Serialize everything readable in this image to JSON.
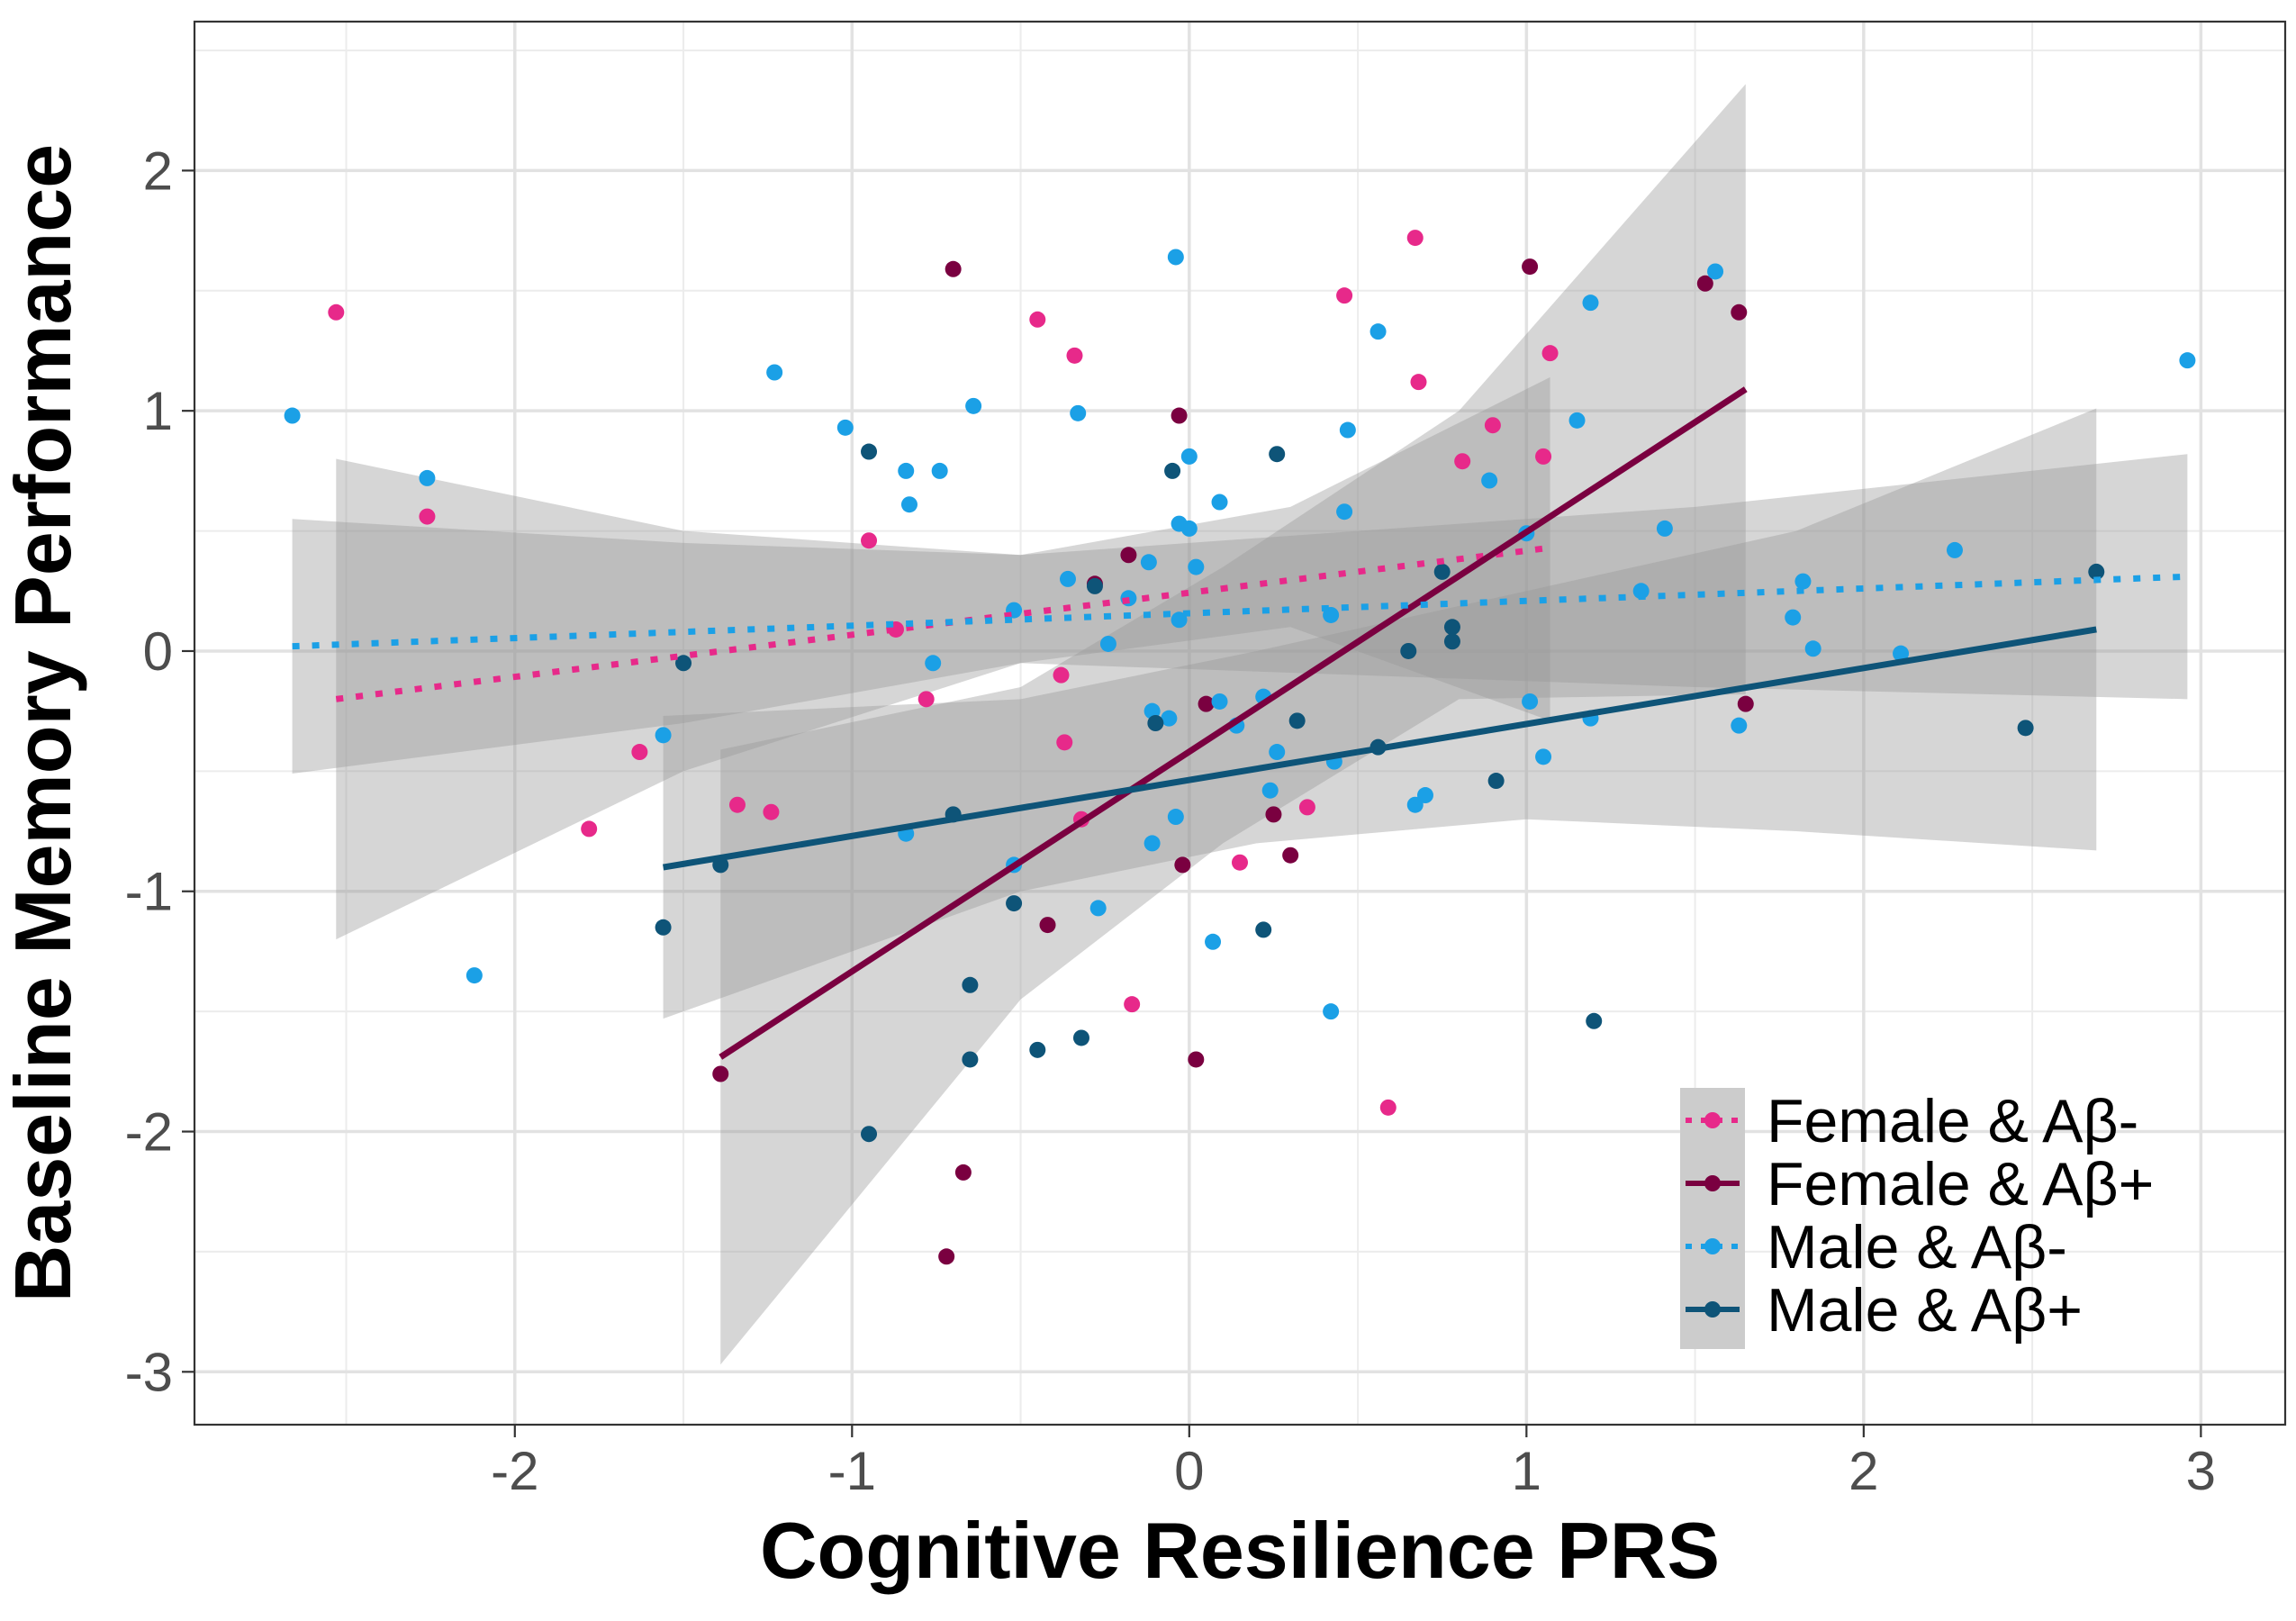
{
  "chart_data": {
    "type": "scatter",
    "xlabel": "Cognitive Resilience PRS",
    "ylabel": "Baseline Memory Performance",
    "xlim": [
      -2.95,
      3.25
    ],
    "ylim": [
      -3.22,
      2.62
    ],
    "x_ticks": [
      -2,
      -1,
      0,
      1,
      2,
      3
    ],
    "y_ticks": [
      -3,
      -2,
      -1,
      0,
      1,
      2
    ],
    "x_tick_labels": [
      "-2",
      "-1",
      "0",
      "1",
      "2",
      "3"
    ],
    "y_tick_labels": [
      "-3",
      "-2",
      "-1",
      "0",
      "1",
      "2"
    ],
    "grid": true,
    "legend_position": "bottom-right",
    "series": [
      {
        "name": "Female & Aβ-",
        "color": "#e7298a",
        "line_style": "dotted",
        "fit": [
          [
            -2.53,
            -0.2
          ],
          [
            1.07,
            0.43
          ]
        ],
        "band": {
          "x": [
            -2.53,
            -1.5,
            -0.5,
            0.3,
            1.07
          ],
          "upper": [
            0.8,
            0.5,
            0.4,
            0.6,
            1.14
          ],
          "lower": [
            -1.2,
            -0.5,
            -0.05,
            0.1,
            -0.29
          ]
        },
        "points": [
          [
            -2.53,
            1.41
          ],
          [
            -2.26,
            0.56
          ],
          [
            -1.78,
            -0.74
          ],
          [
            -1.63,
            -0.42
          ],
          [
            -1.34,
            -0.64
          ],
          [
            -1.24,
            -0.67
          ],
          [
            -0.95,
            0.46
          ],
          [
            -0.87,
            0.09
          ],
          [
            -0.78,
            -0.2
          ],
          [
            -0.45,
            1.38
          ],
          [
            -0.38,
            -0.1
          ],
          [
            -0.37,
            -0.38
          ],
          [
            -0.34,
            1.23
          ],
          [
            -0.32,
            -0.7
          ],
          [
            -0.17,
            -1.47
          ],
          [
            0.15,
            -0.88
          ],
          [
            0.35,
            -0.65
          ],
          [
            0.46,
            1.48
          ],
          [
            0.59,
            -1.9
          ],
          [
            0.67,
            1.72
          ],
          [
            0.68,
            1.12
          ],
          [
            0.81,
            0.79
          ],
          [
            0.9,
            0.94
          ],
          [
            1.05,
            0.81
          ],
          [
            1.07,
            1.24
          ]
        ]
      },
      {
        "name": "Female & Aβ+",
        "color": "#7a0040",
        "line_style": "solid",
        "fit": [
          [
            -1.39,
            -1.69
          ],
          [
            1.65,
            1.09
          ]
        ],
        "band": {
          "x": [
            -1.39,
            -0.5,
            0.1,
            0.8,
            1.65
          ],
          "upper": [
            -0.41,
            -0.15,
            0.35,
            1.0,
            2.36
          ],
          "lower": [
            -2.97,
            -1.45,
            -0.8,
            -0.2,
            -0.18
          ]
        },
        "points": [
          [
            -1.39,
            -1.76
          ],
          [
            -0.72,
            -2.52
          ],
          [
            -0.7,
            1.59
          ],
          [
            -0.67,
            -2.17
          ],
          [
            -0.42,
            -1.14
          ],
          [
            -0.28,
            0.28
          ],
          [
            -0.18,
            0.4
          ],
          [
            -0.03,
            0.98
          ],
          [
            -0.02,
            -0.89
          ],
          [
            0.02,
            -1.7
          ],
          [
            0.05,
            -0.22
          ],
          [
            0.25,
            -0.68
          ],
          [
            0.3,
            -0.85
          ],
          [
            1.01,
            1.6
          ],
          [
            1.53,
            1.53
          ],
          [
            1.63,
            1.41
          ],
          [
            1.65,
            -0.22
          ]
        ]
      },
      {
        "name": "Male & Aβ-",
        "color": "#1ba0e6",
        "line_style": "dotted",
        "fit": [
          [
            -2.66,
            0.02
          ],
          [
            2.96,
            0.31
          ]
        ],
        "band": {
          "x": [
            -2.66,
            -1.5,
            -0.5,
            0.5,
            1.5,
            2.96
          ],
          "upper": [
            0.55,
            0.45,
            0.4,
            0.5,
            0.6,
            0.82
          ],
          "lower": [
            -0.51,
            -0.3,
            -0.05,
            -0.1,
            -0.15,
            -0.2
          ]
        },
        "points": [
          [
            -2.66,
            0.98
          ],
          [
            -2.26,
            0.72
          ],
          [
            -2.12,
            -1.35
          ],
          [
            -1.56,
            -0.35
          ],
          [
            -1.23,
            1.16
          ],
          [
            -1.02,
            0.93
          ],
          [
            -0.84,
            0.75
          ],
          [
            -0.83,
            0.61
          ],
          [
            -0.84,
            -0.76
          ],
          [
            -0.74,
            0.75
          ],
          [
            -0.76,
            -0.05
          ],
          [
            -0.64,
            1.02
          ],
          [
            -0.52,
            0.17
          ],
          [
            -0.52,
            -0.89
          ],
          [
            -0.36,
            0.3
          ],
          [
            -0.33,
            0.99
          ],
          [
            -0.27,
            -1.07
          ],
          [
            -0.24,
            0.03
          ],
          [
            -0.18,
            0.22
          ],
          [
            -0.12,
            0.37
          ],
          [
            -0.11,
            -0.25
          ],
          [
            -0.11,
            -0.8
          ],
          [
            -0.06,
            -0.28
          ],
          [
            -0.04,
            1.64
          ],
          [
            -0.03,
            0.53
          ],
          [
            -0.04,
            -0.69
          ],
          [
            -0.03,
            0.13
          ],
          [
            0.0,
            0.51
          ],
          [
            0.0,
            0.81
          ],
          [
            0.02,
            0.35
          ],
          [
            0.07,
            -1.21
          ],
          [
            0.09,
            0.62
          ],
          [
            0.09,
            -0.21
          ],
          [
            0.14,
            -0.31
          ],
          [
            0.22,
            -0.19
          ],
          [
            0.24,
            -0.58
          ],
          [
            0.26,
            -0.42
          ],
          [
            0.42,
            0.15
          ],
          [
            0.42,
            -1.5
          ],
          [
            0.43,
            -0.46
          ],
          [
            0.46,
            0.58
          ],
          [
            0.47,
            0.92
          ],
          [
            0.56,
            1.33
          ],
          [
            0.67,
            -0.64
          ],
          [
            0.7,
            -0.6
          ],
          [
            0.89,
            0.71
          ],
          [
            1.0,
            0.49
          ],
          [
            1.01,
            -0.21
          ],
          [
            1.05,
            -0.44
          ],
          [
            1.15,
            0.96
          ],
          [
            1.19,
            1.45
          ],
          [
            1.19,
            -0.28
          ],
          [
            1.34,
            0.25
          ],
          [
            1.41,
            0.51
          ],
          [
            1.56,
            1.58
          ],
          [
            1.63,
            -0.31
          ],
          [
            1.79,
            0.14
          ],
          [
            1.82,
            0.29
          ],
          [
            1.85,
            0.01
          ],
          [
            2.11,
            -0.01
          ],
          [
            2.27,
            0.42
          ],
          [
            2.96,
            1.21
          ]
        ]
      },
      {
        "name": "Male & Aβ+",
        "color": "#0e5478",
        "line_style": "solid",
        "fit": [
          [
            -1.56,
            -0.9
          ],
          [
            2.69,
            0.09
          ]
        ],
        "band": {
          "x": [
            -1.56,
            -0.5,
            0.2,
            1.0,
            1.8,
            2.69
          ],
          "upper": [
            -0.27,
            -0.2,
            0.0,
            0.25,
            0.5,
            1.01
          ],
          "lower": [
            -1.53,
            -1.0,
            -0.8,
            -0.7,
            -0.75,
            -0.83
          ]
        },
        "points": [
          [
            -1.56,
            -1.15
          ],
          [
            -1.5,
            -0.05
          ],
          [
            -1.39,
            -0.89
          ],
          [
            -0.95,
            0.83
          ],
          [
            -0.95,
            -2.01
          ],
          [
            -0.7,
            -0.68
          ],
          [
            -0.65,
            -1.39
          ],
          [
            -0.65,
            -1.7
          ],
          [
            -0.52,
            -1.05
          ],
          [
            -0.45,
            -1.66
          ],
          [
            -0.32,
            -1.61
          ],
          [
            -0.28,
            0.27
          ],
          [
            -0.1,
            -0.3
          ],
          [
            -0.05,
            0.75
          ],
          [
            0.22,
            -1.16
          ],
          [
            0.26,
            0.82
          ],
          [
            0.32,
            -0.29
          ],
          [
            0.56,
            -0.4
          ],
          [
            0.65,
            0.0
          ],
          [
            0.75,
            0.33
          ],
          [
            0.78,
            0.1
          ],
          [
            0.78,
            0.04
          ],
          [
            0.91,
            -0.54
          ],
          [
            1.2,
            -1.54
          ],
          [
            2.48,
            -0.32
          ],
          [
            2.69,
            0.33
          ]
        ]
      }
    ]
  }
}
